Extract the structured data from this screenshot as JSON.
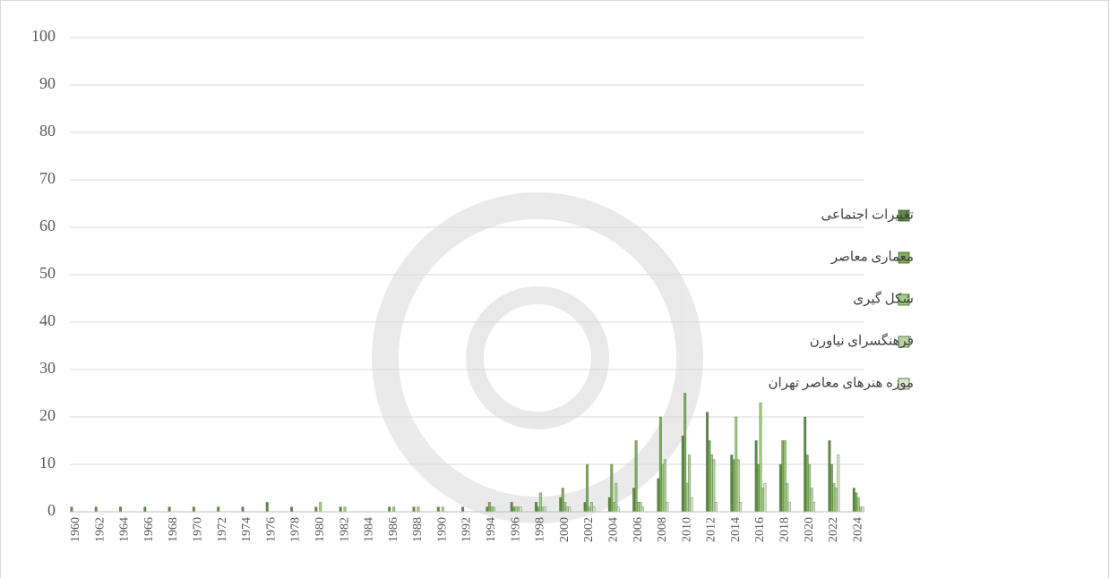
{
  "chart_data": {
    "type": "bar",
    "categories": [
      "1960",
      null,
      "1962",
      null,
      "1964",
      null,
      "1966",
      null,
      "1968",
      null,
      "1970",
      null,
      "1972",
      null,
      "1974",
      null,
      "1976",
      null,
      "1978",
      null,
      "1980",
      null,
      "1982",
      null,
      "1984",
      null,
      "1986",
      null,
      "1988",
      null,
      "1990",
      null,
      "1992",
      null,
      "1994",
      null,
      "1996",
      null,
      "1998",
      null,
      "2000",
      null,
      "2002",
      null,
      "2004",
      null,
      "2006",
      null,
      "2008",
      null,
      "2010",
      null,
      "2012",
      null,
      "2014",
      null,
      "2016",
      null,
      "2018",
      null,
      "2020",
      null,
      "2022",
      null,
      "2024"
    ],
    "series": [
      {
        "name": "تغییرات اجتماعی",
        "color": "#5f8a45",
        "values": [
          1,
          0,
          1,
          0,
          1,
          0,
          1,
          0,
          1,
          0,
          1,
          0,
          1,
          0,
          1,
          0,
          2,
          0,
          1,
          0,
          1,
          0,
          1,
          0,
          0,
          0,
          1,
          0,
          1,
          0,
          1,
          0,
          1,
          0,
          1,
          0,
          2,
          0,
          2,
          0,
          3,
          0,
          2,
          0,
          3,
          0,
          5,
          0,
          7,
          0,
          16,
          0,
          21,
          0,
          12,
          0,
          15,
          0,
          10,
          0,
          20,
          0,
          15,
          0,
          5
        ]
      },
      {
        "name": "معماری معاصر",
        "color": "#7fae5e",
        "values": [
          0,
          0,
          0,
          0,
          0,
          0,
          0,
          0,
          0,
          0,
          0,
          0,
          0,
          0,
          0,
          0,
          0,
          0,
          0,
          0,
          0,
          0,
          0,
          0,
          0,
          0,
          0,
          0,
          0,
          0,
          0,
          0,
          0,
          0,
          2,
          0,
          1,
          0,
          1,
          0,
          5,
          0,
          10,
          0,
          10,
          0,
          15,
          0,
          20,
          0,
          25,
          0,
          15,
          0,
          11,
          0,
          10,
          0,
          15,
          0,
          12,
          0,
          10,
          0,
          4
        ]
      },
      {
        "name": "شکل گیری",
        "color": "#9fd17f",
        "values": [
          0,
          0,
          0,
          0,
          0,
          0,
          0,
          0,
          0,
          0,
          0,
          0,
          0,
          0,
          0,
          0,
          0,
          0,
          0,
          0,
          2,
          0,
          1,
          0,
          0,
          0,
          1,
          0,
          1,
          0,
          1,
          0,
          0,
          0,
          1,
          0,
          1,
          0,
          4,
          0,
          2,
          0,
          1,
          0,
          2,
          0,
          2,
          0,
          10,
          0,
          6,
          0,
          12,
          0,
          20,
          0,
          23,
          0,
          15,
          0,
          10,
          0,
          6,
          0,
          3
        ]
      },
      {
        "name": "فرهنگسرای نیاورن",
        "color": "#b6d3a2",
        "values": [
          0,
          0,
          0,
          0,
          0,
          0,
          0,
          0,
          0,
          0,
          0,
          0,
          0,
          0,
          0,
          0,
          0,
          0,
          0,
          0,
          0,
          0,
          0,
          0,
          0,
          0,
          0,
          0,
          0,
          0,
          0,
          0,
          0,
          0,
          1,
          0,
          1,
          0,
          1,
          0,
          1,
          0,
          2,
          0,
          6,
          0,
          2,
          0,
          11,
          0,
          12,
          0,
          11,
          0,
          11,
          0,
          5,
          0,
          6,
          0,
          5,
          0,
          5,
          0,
          1
        ]
      },
      {
        "name": "موزه هنرهای معاصر تهران",
        "color": "#d8e8cc",
        "values": [
          0,
          0,
          0,
          0,
          0,
          0,
          0,
          0,
          0,
          0,
          0,
          0,
          0,
          0,
          0,
          0,
          0,
          0,
          0,
          0,
          0,
          0,
          0,
          0,
          0,
          0,
          0,
          0,
          0,
          0,
          0,
          0,
          0,
          0,
          0,
          0,
          1,
          0,
          1,
          0,
          1,
          0,
          1,
          0,
          1,
          0,
          1,
          0,
          2,
          0,
          3,
          0,
          2,
          0,
          2,
          0,
          6,
          0,
          2,
          0,
          2,
          0,
          12,
          0,
          1
        ]
      }
    ],
    "ylim": [
      0,
      100
    ],
    "yticks": [
      0,
      10,
      20,
      30,
      40,
      50,
      60,
      70,
      80,
      90,
      100
    ],
    "grid": true,
    "legend": "right"
  }
}
